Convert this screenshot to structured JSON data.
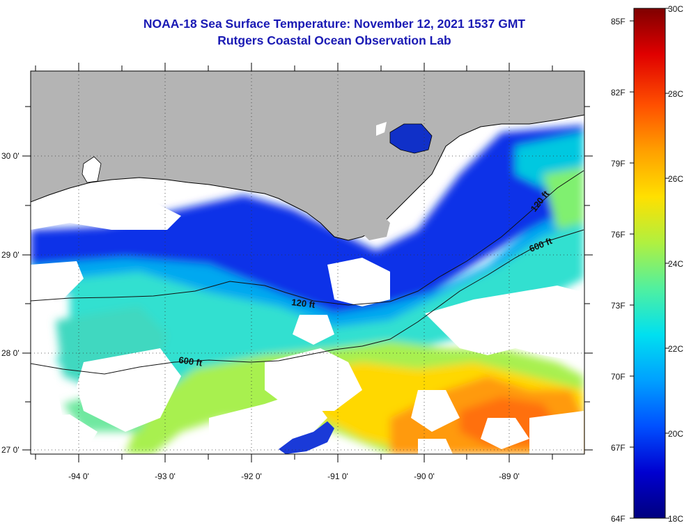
{
  "title": {
    "line1": "NOAA-18 Sea Surface Temperature:  November 12, 2021 1537 GMT",
    "line2": "Rutgers Coastal Ocean Observation Lab"
  },
  "map": {
    "longitude_labels": [
      "-94 0'",
      "-93 0'",
      "-92 0'",
      "-91 0'",
      "-90 0'",
      "-89 0'"
    ],
    "latitude_labels": [
      "30 0'",
      "29 0'",
      "28 0'",
      "27 0'"
    ],
    "contour_labels": [
      "120 ft",
      "600 ft",
      "120 ft",
      "600 ft"
    ],
    "colors": {
      "land": "#b4b4b4",
      "cloud": "#ffffff",
      "coast": "#000000"
    }
  },
  "colorbar": {
    "fahrenheit_labels": [
      "85F",
      "82F",
      "79F",
      "76F",
      "73F",
      "70F",
      "67F",
      "64F"
    ],
    "celsius_labels": [
      "30C",
      "28C",
      "26C",
      "24C",
      "22C",
      "20C",
      "18C"
    ],
    "stops": [
      "#00007f",
      "#0000d0",
      "#0050ff",
      "#00a0ff",
      "#00e0f0",
      "#50f0a0",
      "#b0f040",
      "#ffe000",
      "#ffa000",
      "#ff5000",
      "#e00000",
      "#7f0000"
    ]
  }
}
